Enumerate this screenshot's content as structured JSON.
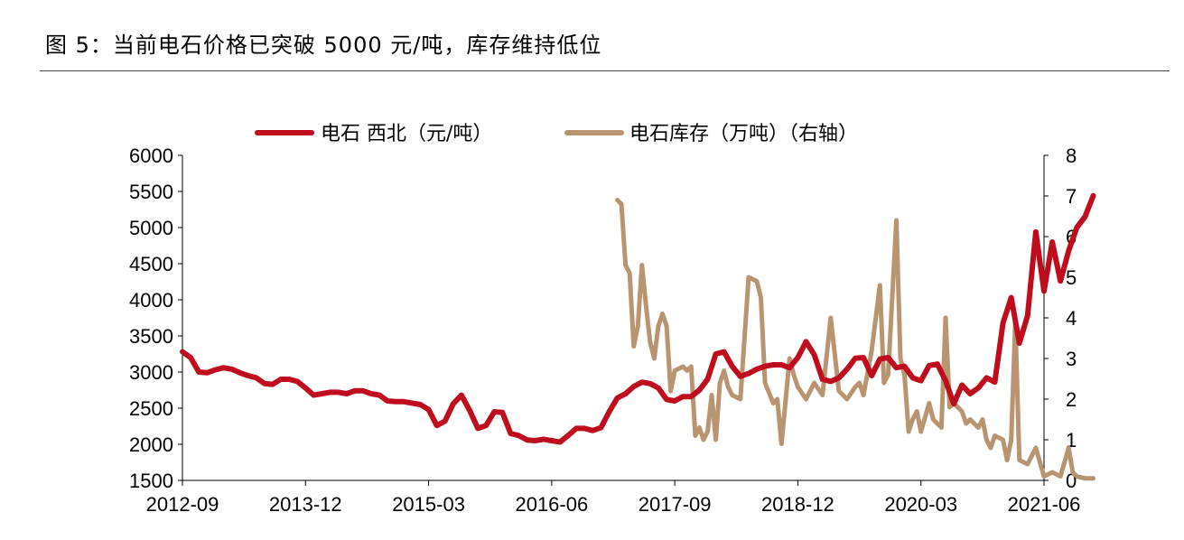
{
  "figure": {
    "title": "图 5：当前电石价格已突破 5000 元/吨，库存维持低位"
  },
  "colors": {
    "price_line": "#c00d1e",
    "inventory_line": "#b89470",
    "axis": "#000000"
  },
  "chart_data": {
    "type": "line",
    "title": "",
    "x_tick_labels": [
      "2012-09",
      "2013-12",
      "2015-03",
      "2016-06",
      "2017-09",
      "2018-12",
      "2020-03",
      "2021-06"
    ],
    "x_range": [
      "2012-09",
      "2021-06"
    ],
    "y_left": {
      "ticks": [
        1500,
        2000,
        2500,
        3000,
        3500,
        4000,
        4500,
        5000,
        5500,
        6000
      ],
      "range": [
        1500,
        6000
      ]
    },
    "y_right": {
      "ticks": [
        0,
        1,
        2,
        3,
        4,
        5,
        6,
        7,
        8
      ],
      "range": [
        0,
        8
      ]
    },
    "grid": false,
    "legend_position": "top",
    "series": [
      {
        "name": "电石 西北（元/吨）",
        "axis": "left",
        "points": [
          [
            "2012-09",
            3280
          ],
          [
            "2012-10",
            3200
          ],
          [
            "2012-11",
            3000
          ],
          [
            "2012-12",
            2990
          ],
          [
            "2013-01",
            3030
          ],
          [
            "2013-02",
            3060
          ],
          [
            "2013-03",
            3040
          ],
          [
            "2013-04",
            2990
          ],
          [
            "2013-05",
            2950
          ],
          [
            "2013-06",
            2920
          ],
          [
            "2013-07",
            2840
          ],
          [
            "2013-08",
            2830
          ],
          [
            "2013-09",
            2900
          ],
          [
            "2013-10",
            2900
          ],
          [
            "2013-11",
            2870
          ],
          [
            "2013-12",
            2780
          ],
          [
            "2014-01",
            2680
          ],
          [
            "2014-02",
            2700
          ],
          [
            "2014-03",
            2720
          ],
          [
            "2014-04",
            2720
          ],
          [
            "2014-05",
            2700
          ],
          [
            "2014-06",
            2740
          ],
          [
            "2014-07",
            2740
          ],
          [
            "2014-08",
            2700
          ],
          [
            "2014-09",
            2680
          ],
          [
            "2014-10",
            2600
          ],
          [
            "2014-11",
            2590
          ],
          [
            "2014-12",
            2590
          ],
          [
            "2015-01",
            2570
          ],
          [
            "2015-02",
            2550
          ],
          [
            "2015-03",
            2480
          ],
          [
            "2015-04",
            2260
          ],
          [
            "2015-05",
            2320
          ],
          [
            "2015-06",
            2560
          ],
          [
            "2015-07",
            2680
          ],
          [
            "2015-08",
            2470
          ],
          [
            "2015-09",
            2220
          ],
          [
            "2015-10",
            2260
          ],
          [
            "2015-11",
            2450
          ],
          [
            "2015-12",
            2440
          ],
          [
            "2016-01",
            2150
          ],
          [
            "2016-02",
            2120
          ],
          [
            "2016-03",
            2060
          ],
          [
            "2016-04",
            2050
          ],
          [
            "2016-05",
            2070
          ],
          [
            "2016-06",
            2050
          ],
          [
            "2016-07",
            2030
          ],
          [
            "2016-08",
            2120
          ],
          [
            "2016-09",
            2220
          ],
          [
            "2016-10",
            2220
          ],
          [
            "2016-11",
            2190
          ],
          [
            "2016-12",
            2230
          ],
          [
            "2017-01",
            2450
          ],
          [
            "2017-02",
            2640
          ],
          [
            "2017-03",
            2700
          ],
          [
            "2017-04",
            2800
          ],
          [
            "2017-05",
            2860
          ],
          [
            "2017-06",
            2840
          ],
          [
            "2017-07",
            2780
          ],
          [
            "2017-08",
            2620
          ],
          [
            "2017-09",
            2600
          ],
          [
            "2017-10",
            2660
          ],
          [
            "2017-11",
            2660
          ],
          [
            "2017-12",
            2750
          ],
          [
            "2018-01",
            2900
          ],
          [
            "2018-02",
            3250
          ],
          [
            "2018-03",
            3280
          ],
          [
            "2018-04",
            3080
          ],
          [
            "2018-05",
            2940
          ],
          [
            "2018-06",
            2980
          ],
          [
            "2018-07",
            3040
          ],
          [
            "2018-08",
            3080
          ],
          [
            "2018-09",
            3100
          ],
          [
            "2018-10",
            3100
          ],
          [
            "2018-11",
            3060
          ],
          [
            "2018-12",
            3200
          ],
          [
            "2019-01",
            3420
          ],
          [
            "2019-02",
            3240
          ],
          [
            "2019-03",
            2900
          ],
          [
            "2019-04",
            2870
          ],
          [
            "2019-05",
            2920
          ],
          [
            "2019-06",
            3040
          ],
          [
            "2019-07",
            3190
          ],
          [
            "2019-08",
            3200
          ],
          [
            "2019-09",
            2950
          ],
          [
            "2019-10",
            3180
          ],
          [
            "2019-11",
            3200
          ],
          [
            "2019-12",
            3060
          ],
          [
            "2020-01",
            3080
          ],
          [
            "2020-02",
            2920
          ],
          [
            "2020-03",
            2880
          ],
          [
            "2020-04",
            3090
          ],
          [
            "2020-05",
            3110
          ],
          [
            "2020-06",
            2880
          ],
          [
            "2020-07",
            2560
          ],
          [
            "2020-08",
            2820
          ],
          [
            "2020-09",
            2700
          ],
          [
            "2020-10",
            2780
          ],
          [
            "2020-11",
            2920
          ],
          [
            "2020-12",
            2860
          ],
          [
            "2021-01",
            3680
          ],
          [
            "2021-02",
            4030
          ],
          [
            "2021-03",
            3400
          ],
          [
            "2021-04",
            3780
          ],
          [
            "2021-05",
            4940
          ],
          [
            "2021-06",
            4120
          ],
          [
            "2021-07",
            4800
          ],
          [
            "2021-08",
            4260
          ],
          [
            "2021-09",
            4680
          ],
          [
            "2021-10",
            5000
          ],
          [
            "2021-11",
            5150
          ],
          [
            "2021-12",
            5440
          ]
        ]
      },
      {
        "name": "电石库存（万吨）（右轴）",
        "axis": "right",
        "points": [
          [
            "2017-02",
            6.9
          ],
          [
            "2017-02",
            6.8
          ],
          [
            "2017-03",
            5.3
          ],
          [
            "2017-03",
            5.1
          ],
          [
            "2017-04",
            3.3
          ],
          [
            "2017-04",
            3.8
          ],
          [
            "2017-05",
            5.3
          ],
          [
            "2017-05",
            4.3
          ],
          [
            "2017-06",
            3.4
          ],
          [
            "2017-06",
            3.0
          ],
          [
            "2017-07",
            3.8
          ],
          [
            "2017-07",
            4.1
          ],
          [
            "2017-08",
            3.8
          ],
          [
            "2017-08",
            2.2
          ],
          [
            "2017-09",
            2.7
          ],
          [
            "2017-10",
            2.8
          ],
          [
            "2017-10",
            2.7
          ],
          [
            "2017-11",
            2.8
          ],
          [
            "2017-11",
            1.1
          ],
          [
            "2017-12",
            1.3
          ],
          [
            "2017-12",
            1.0
          ],
          [
            "2018-01",
            1.2
          ],
          [
            "2018-01",
            2.1
          ],
          [
            "2018-02",
            1.0
          ],
          [
            "2018-02",
            2.4
          ],
          [
            "2018-03",
            2.7
          ],
          [
            "2018-03",
            2.3
          ],
          [
            "2018-04",
            2.1
          ],
          [
            "2018-05",
            2.0
          ],
          [
            "2018-06",
            5.0
          ],
          [
            "2018-07",
            4.9
          ],
          [
            "2018-07",
            4.5
          ],
          [
            "2018-08",
            2.4
          ],
          [
            "2018-09",
            1.9
          ],
          [
            "2018-09",
            2.0
          ],
          [
            "2018-10",
            0.9
          ],
          [
            "2018-11",
            3.0
          ],
          [
            "2018-11",
            2.6
          ],
          [
            "2018-12",
            2.3
          ],
          [
            "2019-01",
            2.0
          ],
          [
            "2019-02",
            2.4
          ],
          [
            "2019-03",
            2.1
          ],
          [
            "2019-04",
            4.0
          ],
          [
            "2019-05",
            2.2
          ],
          [
            "2019-06",
            2.0
          ],
          [
            "2019-07",
            2.3
          ],
          [
            "2019-07",
            2.4
          ],
          [
            "2019-08",
            2.1
          ],
          [
            "2019-09",
            3.2
          ],
          [
            "2019-10",
            4.8
          ],
          [
            "2019-10",
            2.4
          ],
          [
            "2019-11",
            2.6
          ],
          [
            "2019-12",
            6.4
          ],
          [
            "2019-12",
            3.0
          ],
          [
            "2020-01",
            2.6
          ],
          [
            "2020-01",
            1.2
          ],
          [
            "2020-02",
            1.5
          ],
          [
            "2020-02",
            1.7
          ],
          [
            "2020-03",
            1.2
          ],
          [
            "2020-04",
            1.9
          ],
          [
            "2020-04",
            1.5
          ],
          [
            "2020-05",
            1.4
          ],
          [
            "2020-05",
            1.3
          ],
          [
            "2020-06",
            4.0
          ],
          [
            "2020-06",
            1.8
          ],
          [
            "2020-07",
            1.9
          ],
          [
            "2020-08",
            1.7
          ],
          [
            "2020-08",
            1.4
          ],
          [
            "2020-09",
            1.5
          ],
          [
            "2020-10",
            1.3
          ],
          [
            "2020-10",
            1.5
          ],
          [
            "2020-11",
            1.0
          ],
          [
            "2020-11",
            0.8
          ],
          [
            "2020-12",
            1.1
          ],
          [
            "2021-01",
            1.0
          ],
          [
            "2021-01",
            0.5
          ],
          [
            "2021-02",
            1.0
          ],
          [
            "2021-02",
            3.9
          ],
          [
            "2021-03",
            0.5
          ],
          [
            "2021-04",
            0.4
          ],
          [
            "2021-05",
            0.8
          ],
          [
            "2021-06",
            0.1
          ],
          [
            "2021-07",
            0.2
          ],
          [
            "2021-08",
            0.1
          ],
          [
            "2021-09",
            0.8
          ],
          [
            "2021-09",
            0.2
          ],
          [
            "2021-10",
            0.1
          ],
          [
            "2021-11",
            0.05
          ],
          [
            "2021-12",
            0.05
          ]
        ]
      }
    ]
  }
}
